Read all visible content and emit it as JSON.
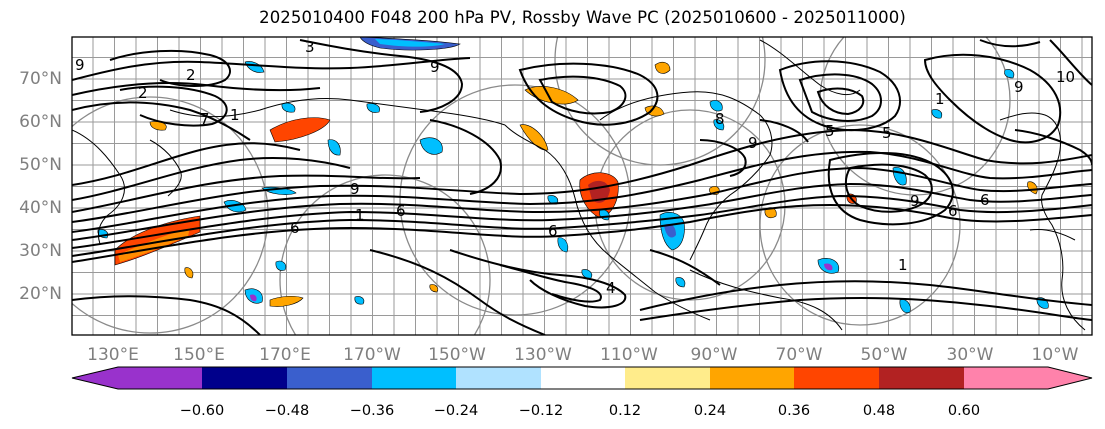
{
  "title": "2025010400 F048 200 hPa PV, Rossby Wave PC (2025010600 - 2025011000)",
  "lat_labels": [
    "70°N",
    "60°N",
    "50°N",
    "40°N",
    "30°N",
    "20°N"
  ],
  "lon_labels": [
    "130°E",
    "150°E",
    "170°E",
    "170°W",
    "150°W",
    "130°W",
    "110°W",
    "90°W",
    "70°W",
    "50°W",
    "30°W",
    "10°W"
  ],
  "colorbar": {
    "colors": [
      "#9932cc",
      "#00008b",
      "#3a5fcd",
      "#00bfff",
      "#b0e2ff",
      "#ffffff",
      "#ffec8b",
      "#ffa500",
      "#ff4500",
      "#b22222",
      "#ff82ab"
    ],
    "tick_labels": [
      "−0.60",
      "−0.48",
      "−0.36",
      "−0.24",
      "−0.12",
      "0.12",
      "0.24",
      "0.36",
      "0.48",
      "0.60"
    ]
  },
  "contour_labels": [
    "2",
    "2",
    "3",
    "9",
    "6",
    "1",
    "6",
    "9",
    "7",
    "9",
    "6",
    "4",
    "9",
    "9",
    "5",
    "6",
    "1",
    "9",
    "1",
    "10",
    "5",
    "1",
    "8",
    "6"
  ]
}
